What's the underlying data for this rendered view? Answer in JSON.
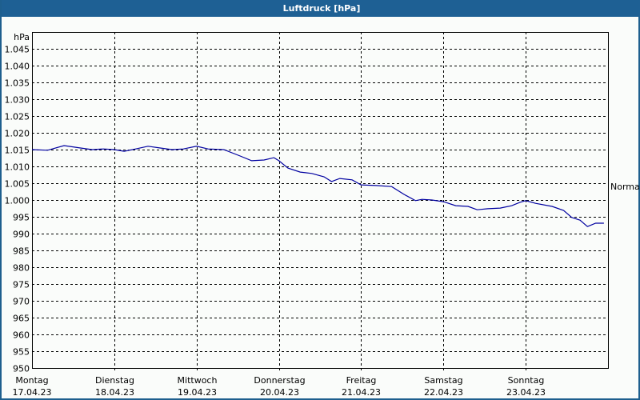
{
  "window": {
    "title": "Luftdruck [hPa]"
  },
  "colors": {
    "titlebar": "#1e6094",
    "border": "#1e5f8e",
    "background": "#fafcfa",
    "series_line": "#0000a0",
    "grid": "#000000"
  },
  "reference_label": "Normal",
  "chart_data": {
    "type": "line",
    "title": "Luftdruck [hPa]",
    "xlabel": "",
    "ylabel": "hPa",
    "ylim": [
      950,
      1050
    ],
    "yticks": [
      "950",
      "955",
      "960",
      "965",
      "970",
      "975",
      "980",
      "985",
      "990",
      "995",
      "1.000",
      "1.005",
      "1.010",
      "1.015",
      "1.020",
      "1.025",
      "1.030",
      "1.035",
      "1.040",
      "1.045"
    ],
    "xticks": [
      {
        "day": "Montag",
        "date": "17.04.23"
      },
      {
        "day": "Dienstag",
        "date": "18.04.23"
      },
      {
        "day": "Mittwoch",
        "date": "19.04.23"
      },
      {
        "day": "Donnerstag",
        "date": "20.04.23"
      },
      {
        "day": "Freitag",
        "date": "21.04.23"
      },
      {
        "day": "Samstag",
        "date": "22.04.23"
      },
      {
        "day": "Sonntag",
        "date": "23.04.23"
      }
    ],
    "grid": true,
    "grid_style": "dashed",
    "x_unit": "days since 17.04.23 00:00",
    "xlim": [
      0,
      7
    ],
    "annotations": [
      {
        "text": "Normal",
        "position": "right",
        "value": 1005
      }
    ],
    "series": [
      {
        "name": "Luftdruck",
        "x": [
          0.0,
          0.19,
          0.39,
          0.58,
          0.73,
          0.87,
          1.0,
          1.12,
          1.26,
          1.41,
          1.55,
          1.7,
          1.84,
          2.0,
          2.14,
          2.33,
          2.53,
          2.67,
          2.82,
          2.94,
          3.0,
          3.11,
          3.26,
          3.4,
          3.55,
          3.64,
          3.74,
          3.89,
          4.0,
          4.18,
          4.37,
          4.52,
          4.66,
          4.74,
          4.86,
          5.0,
          5.15,
          5.3,
          5.41,
          5.54,
          5.69,
          5.83,
          5.93,
          6.0,
          6.12,
          6.32,
          6.46,
          6.56,
          6.66,
          6.75,
          6.85,
          6.95
        ],
        "values": [
          1015.0,
          1014.8,
          1016.2,
          1015.5,
          1015.0,
          1015.2,
          1015.0,
          1014.5,
          1015.2,
          1016.0,
          1015.5,
          1015.0,
          1015.2,
          1016.0,
          1015.2,
          1015.0,
          1013.1,
          1011.7,
          1011.9,
          1012.6,
          1011.7,
          1009.5,
          1008.3,
          1007.9,
          1006.9,
          1005.5,
          1006.4,
          1006.0,
          1004.5,
          1004.3,
          1004.0,
          1001.7,
          999.8,
          1000.2,
          1000.0,
          999.5,
          998.3,
          998.1,
          997.1,
          997.4,
          997.6,
          998.3,
          999.3,
          999.8,
          999.0,
          998.1,
          996.9,
          994.8,
          994.0,
          992.1,
          993.1,
          993.1
        ]
      }
    ]
  }
}
